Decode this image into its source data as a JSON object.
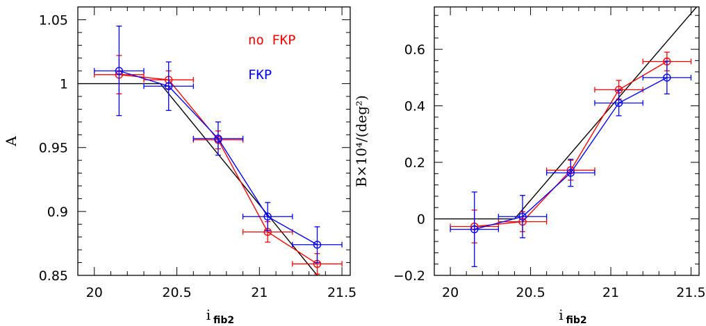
{
  "chart_data": [
    {
      "type": "line",
      "panel": "left",
      "xlabel": "i",
      "xlabel_sub": "fib2",
      "ylabel": "A",
      "xlim": [
        19.9,
        21.55
      ],
      "ylim": [
        0.85,
        1.06
      ],
      "xticks": [
        {
          "v": 20,
          "label": "20"
        },
        {
          "v": 20.5,
          "label": "20.5"
        },
        {
          "v": 21,
          "label": "21"
        },
        {
          "v": 21.5,
          "label": "21.5"
        }
      ],
      "yticks": [
        {
          "v": 0.85,
          "label": "0.85"
        },
        {
          "v": 0.9,
          "label": "0.9"
        },
        {
          "v": 0.95,
          "label": "0.95"
        },
        {
          "v": 1.0,
          "label": "1"
        },
        {
          "v": 1.05,
          "label": "1.05"
        }
      ],
      "model_line": [
        [
          19.9,
          1.0
        ],
        [
          20.4,
          1.0
        ],
        [
          21.35,
          0.85
        ]
      ],
      "series": [
        {
          "name": "no FKP",
          "color": "#ff0000",
          "points": [
            {
              "x": 20.15,
              "y": 1.007,
              "xerr": 0.15,
              "yerr": 0.015
            },
            {
              "x": 20.45,
              "y": 1.003,
              "xerr": 0.15,
              "yerr": 0.007
            },
            {
              "x": 20.75,
              "y": 0.956,
              "xerr": 0.15,
              "yerr": 0.007
            },
            {
              "x": 21.05,
              "y": 0.884,
              "xerr": 0.15,
              "yerr": 0.008
            },
            {
              "x": 21.35,
              "y": 0.859,
              "xerr": 0.15,
              "yerr": 0.008
            }
          ]
        },
        {
          "name": "FKP",
          "color": "#0000ff",
          "points": [
            {
              "x": 20.15,
              "y": 1.01,
              "xerr": 0.15,
              "yerr": 0.035
            },
            {
              "x": 20.45,
              "y": 0.998,
              "xerr": 0.15,
              "yerr": 0.019
            },
            {
              "x": 20.75,
              "y": 0.957,
              "xerr": 0.15,
              "yerr": 0.013
            },
            {
              "x": 21.05,
              "y": 0.896,
              "xerr": 0.15,
              "yerr": 0.011
            },
            {
              "x": 21.35,
              "y": 0.874,
              "xerr": 0.15,
              "yerr": 0.014
            }
          ]
        }
      ],
      "legend_position": "top-right",
      "grid": false
    },
    {
      "type": "line",
      "panel": "right",
      "xlabel": "i",
      "xlabel_sub": "fib2",
      "ylabel": "B×10⁴/(deg²)",
      "xlim": [
        19.9,
        21.55
      ],
      "ylim": [
        -0.2,
        0.75
      ],
      "xticks": [
        {
          "v": 20,
          "label": "20"
        },
        {
          "v": 20.5,
          "label": "20.5"
        },
        {
          "v": 21,
          "label": "21"
        },
        {
          "v": 21.5,
          "label": "21.5"
        }
      ],
      "yticks": [
        {
          "v": -0.2,
          "label": "−0.2"
        },
        {
          "v": 0,
          "label": "0"
        },
        {
          "v": 0.2,
          "label": "0.2"
        },
        {
          "v": 0.4,
          "label": "0.4"
        },
        {
          "v": 0.6,
          "label": "0.6"
        }
      ],
      "model_line": [
        [
          19.9,
          0.0
        ],
        [
          20.4,
          0.0
        ],
        [
          21.55,
          0.76
        ]
      ],
      "series": [
        {
          "name": "no FKP",
          "color": "#ff0000",
          "points": [
            {
              "x": 20.15,
              "y": -0.027,
              "xerr": 0.15,
              "yerr": 0.058
            },
            {
              "x": 20.45,
              "y": -0.01,
              "xerr": 0.15,
              "yerr": 0.035
            },
            {
              "x": 20.75,
              "y": 0.172,
              "xerr": 0.15,
              "yerr": 0.035
            },
            {
              "x": 21.05,
              "y": 0.457,
              "xerr": 0.15,
              "yerr": 0.033
            },
            {
              "x": 21.35,
              "y": 0.557,
              "xerr": 0.15,
              "yerr": 0.033
            }
          ]
        },
        {
          "name": "FKP",
          "color": "#0000ff",
          "points": [
            {
              "x": 20.15,
              "y": -0.037,
              "xerr": 0.15,
              "yerr": 0.132
            },
            {
              "x": 20.45,
              "y": 0.008,
              "xerr": 0.15,
              "yerr": 0.075
            },
            {
              "x": 20.75,
              "y": 0.163,
              "xerr": 0.15,
              "yerr": 0.048
            },
            {
              "x": 21.05,
              "y": 0.41,
              "xerr": 0.15,
              "yerr": 0.045
            },
            {
              "x": 21.35,
              "y": 0.5,
              "xerr": 0.15,
              "yerr": 0.058
            }
          ]
        }
      ],
      "grid": false
    }
  ],
  "legend": {
    "no_fkp_label": "no FKP",
    "fkp_label": "FKP",
    "no_fkp_color": "#ff0000",
    "fkp_color": "#0000ff"
  },
  "colors": {
    "model_line": "#000000",
    "frame": "#000000"
  }
}
